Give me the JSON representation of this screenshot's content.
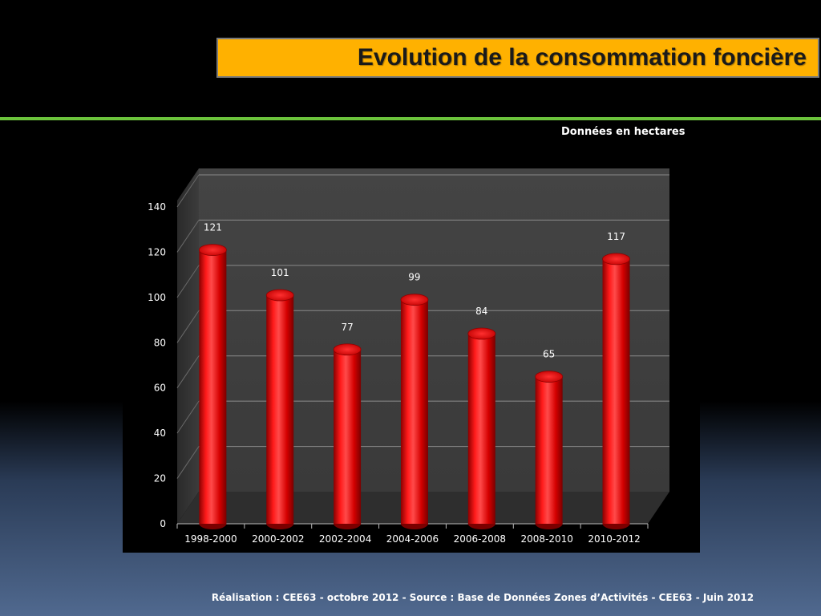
{
  "header": {
    "title": "Evolution de la consommation foncière",
    "unit_note": "Données en hectares"
  },
  "footer": {
    "text": "Réalisation : CEE63 - octobre 2012  - Source : Base de Données Zones d’Activités - CEE63 - Juin 2012"
  },
  "colors": {
    "title_bg": "#ffb100",
    "rule": "#6cc43c",
    "bar": "#e00000"
  },
  "chart_data": {
    "type": "bar",
    "title": "",
    "xlabel": "",
    "ylabel": "",
    "categories": [
      "1998-2000",
      "2000-2002",
      "2002-2004",
      "2004-2006",
      "2006-2008",
      "2008-2010",
      "2010-2012"
    ],
    "values": [
      121,
      101,
      77,
      99,
      84,
      65,
      117
    ],
    "ylim": [
      0,
      140
    ],
    "yticks": [
      0,
      20,
      40,
      60,
      80,
      100,
      120,
      140
    ],
    "grid": true,
    "style": "3d-cylinder"
  }
}
